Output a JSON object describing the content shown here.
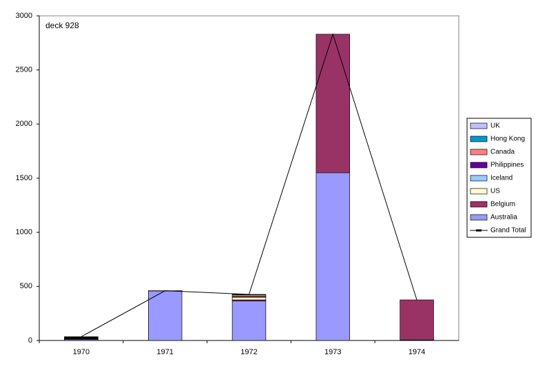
{
  "chart_data": {
    "type": "bar",
    "stacked": true,
    "title": "deck 928",
    "categories": [
      "1970",
      "1971",
      "1972",
      "1973",
      "1974"
    ],
    "series": [
      {
        "name": "UK",
        "color": "#c0c0ff",
        "values": [
          null,
          2,
          5,
          null,
          null
        ]
      },
      {
        "name": "Hong Kong",
        "color": "#0099cc",
        "values": [
          null,
          null,
          null,
          null,
          null
        ]
      },
      {
        "name": "Canada",
        "color": "#ff8080",
        "values": [
          5,
          null,
          15,
          null,
          null
        ]
      },
      {
        "name": "Philippines",
        "color": "#660099",
        "values": [
          5,
          null,
          3,
          null,
          null
        ]
      },
      {
        "name": "Iceland",
        "color": "#99ccff",
        "values": [
          5,
          null,
          3,
          null,
          null
        ]
      },
      {
        "name": "US",
        "color": "#ffffcc",
        "values": [
          5,
          null,
          25,
          null,
          null
        ]
      },
      {
        "name": "Belgium",
        "color": "#993366",
        "values": [
          5,
          null,
          10,
          1280,
          370
        ]
      },
      {
        "name": "Australia",
        "color": "#9999ff",
        "values": [
          10,
          458,
          365,
          1550,
          5
        ]
      },
      {
        "name": "Grand Total",
        "color": "#000000",
        "type": "line",
        "values": [
          35,
          460,
          426,
          2830,
          375
        ]
      }
    ],
    "ylim": [
      0,
      3000
    ],
    "yticks": [
      0,
      500,
      1000,
      1500,
      2000,
      2500,
      3000
    ],
    "grid": false,
    "legend": "right"
  }
}
